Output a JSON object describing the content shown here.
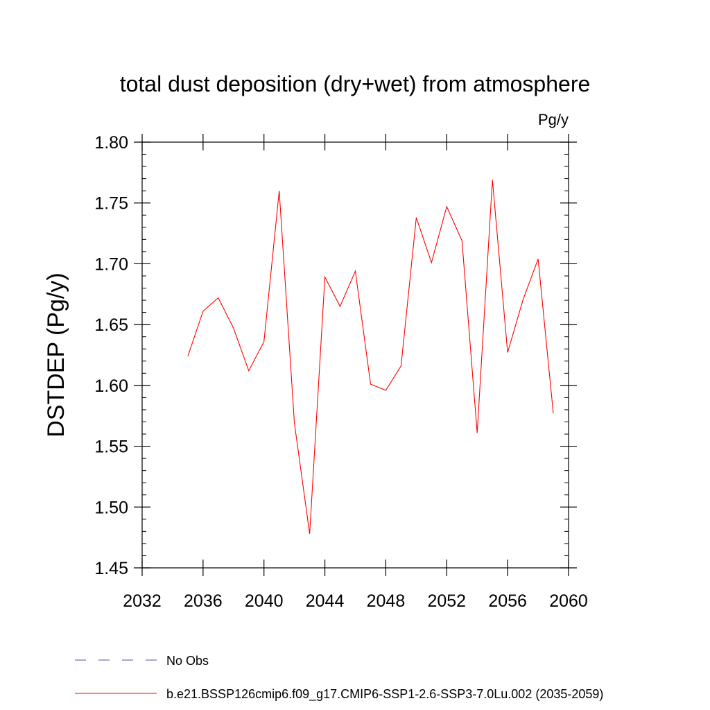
{
  "chart_data": {
    "type": "line",
    "title": "total dust deposition (dry+wet) from atmosphere",
    "units": "Pg/y",
    "ylabel": "DSTDEP  (Pg/y)",
    "xlabel": "",
    "xlim": [
      2032,
      2060
    ],
    "ylim": [
      1.45,
      1.8
    ],
    "xticks": [
      2032,
      2036,
      2040,
      2044,
      2048,
      2052,
      2056,
      2060
    ],
    "yticks": [
      1.45,
      1.5,
      1.55,
      1.6,
      1.65,
      1.7,
      1.75,
      1.8
    ],
    "xtick_labels": [
      "2032",
      "2036",
      "2040",
      "2044",
      "2048",
      "2052",
      "2056",
      "2060"
    ],
    "ytick_labels": [
      "1.45",
      "1.50",
      "1.55",
      "1.60",
      "1.65",
      "1.70",
      "1.75",
      "1.80"
    ],
    "series": [
      {
        "name": "b.e21.BSSP126cmip6.f09_g17.CMIP6-SSP1-2.6-SSP3-7.0Lu.002 (2035-2059)",
        "color": "#ff0000",
        "x": [
          2035,
          2036,
          2037,
          2038,
          2039,
          2040,
          2041,
          2042,
          2043,
          2044,
          2045,
          2046,
          2047,
          2048,
          2049,
          2050,
          2051,
          2052,
          2053,
          2054,
          2055,
          2056,
          2057,
          2058,
          2059
        ],
        "values": [
          1.624,
          1.661,
          1.672,
          1.647,
          1.612,
          1.636,
          1.76,
          1.569,
          1.478,
          1.689,
          1.665,
          1.694,
          1.601,
          1.596,
          1.616,
          1.738,
          1.701,
          1.747,
          1.719,
          1.561,
          1.769,
          1.627,
          1.67,
          1.704,
          1.577
        ]
      }
    ],
    "legend": [
      {
        "label": "No Obs",
        "style": "dashed",
        "color": "#5a4fa0"
      },
      {
        "label": "b.e21.BSSP126cmip6.f09_g17.CMIP6-SSP1-2.6-SSP3-7.0Lu.002 (2035-2059)",
        "style": "solid",
        "color": "#ff0000"
      }
    ],
    "legend_position": "bottom-left"
  }
}
